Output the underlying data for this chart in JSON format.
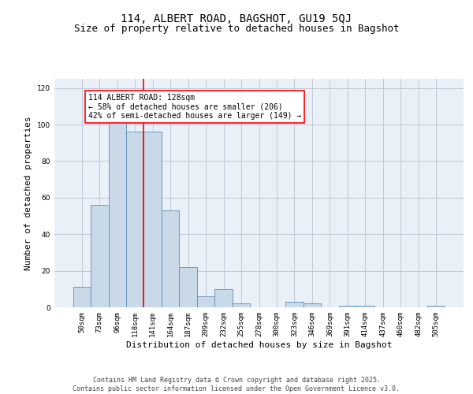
{
  "title1": "114, ALBERT ROAD, BAGSHOT, GU19 5QJ",
  "title2": "Size of property relative to detached houses in Bagshot",
  "xlabel": "Distribution of detached houses by size in Bagshot",
  "ylabel": "Number of detached properties",
  "categories": [
    "50sqm",
    "73sqm",
    "96sqm",
    "118sqm",
    "141sqm",
    "164sqm",
    "187sqm",
    "209sqm",
    "232sqm",
    "255sqm",
    "278sqm",
    "300sqm",
    "323sqm",
    "346sqm",
    "369sqm",
    "391sqm",
    "414sqm",
    "437sqm",
    "460sqm",
    "482sqm",
    "505sqm"
  ],
  "values": [
    11,
    56,
    107,
    96,
    96,
    53,
    22,
    6,
    10,
    2,
    0,
    0,
    3,
    2,
    0,
    1,
    1,
    0,
    0,
    0,
    1
  ],
  "bar_color": "#c9d9e8",
  "bar_edge_color": "#5b8db8",
  "grid_color": "#c0c8d8",
  "bg_color": "#eaf0f8",
  "annotation_text": "114 ALBERT ROAD: 128sqm\n← 58% of detached houses are smaller (206)\n42% of semi-detached houses are larger (149) →",
  "annotation_box_color": "white",
  "annotation_border_color": "red",
  "vline_x": 3.5,
  "vline_color": "red",
  "ylim": [
    0,
    125
  ],
  "yticks": [
    0,
    20,
    40,
    60,
    80,
    100,
    120
  ],
  "footer_text": "Contains HM Land Registry data © Crown copyright and database right 2025.\nContains public sector information licensed under the Open Government Licence v3.0.",
  "title1_fontsize": 10,
  "title2_fontsize": 9,
  "xlabel_fontsize": 8,
  "ylabel_fontsize": 8,
  "annot_fontsize": 7,
  "tick_fontsize": 6.5,
  "footer_fontsize": 6
}
